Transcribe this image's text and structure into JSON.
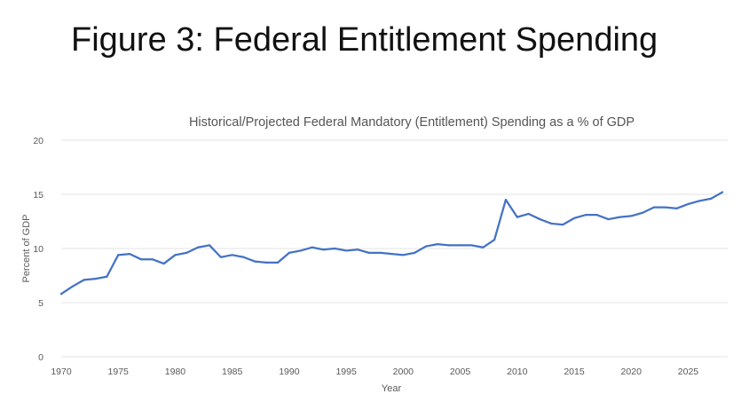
{
  "slide": {
    "title": "Figure 3: Federal Entitlement Spending"
  },
  "chart_data": {
    "type": "line",
    "title": "Historical/Projected Federal Mandatory (Entitlement) Spending as a % of GDP",
    "xlabel": "Year",
    "ylabel": "Percent of GDP",
    "xlim": [
      1970,
      2028
    ],
    "ylim": [
      0,
      20
    ],
    "x_ticks": [
      "1970",
      "1975",
      "1980",
      "1985",
      "1990",
      "1995",
      "2000",
      "2005",
      "2010",
      "2015",
      "2020",
      "2025"
    ],
    "y_ticks": [
      "0",
      "5",
      "10",
      "15",
      "20"
    ],
    "grid": "horizontal",
    "legend": "none",
    "series": [
      {
        "color": "#4472c4",
        "x": [
          1970,
          1971,
          1972,
          1973,
          1974,
          1975,
          1976,
          1977,
          1978,
          1979,
          1980,
          1981,
          1982,
          1983,
          1984,
          1985,
          1986,
          1987,
          1988,
          1989,
          1990,
          1991,
          1992,
          1993,
          1994,
          1995,
          1996,
          1997,
          1998,
          1999,
          2000,
          2001,
          2002,
          2003,
          2004,
          2005,
          2006,
          2007,
          2008,
          2009,
          2010,
          2011,
          2012,
          2013,
          2014,
          2015,
          2016,
          2017,
          2018,
          2019,
          2020,
          2021,
          2022,
          2023,
          2024,
          2025,
          2026,
          2027,
          2028
        ],
        "values": [
          5.8,
          6.5,
          7.1,
          7.2,
          7.4,
          9.4,
          9.5,
          9.0,
          9.0,
          8.6,
          9.4,
          9.6,
          10.1,
          10.3,
          9.2,
          9.4,
          9.2,
          8.8,
          8.7,
          8.7,
          9.6,
          9.8,
          10.1,
          9.9,
          10.0,
          9.8,
          9.9,
          9.6,
          9.6,
          9.5,
          9.4,
          9.6,
          10.2,
          10.4,
          10.3,
          10.3,
          10.3,
          10.1,
          10.8,
          14.5,
          12.9,
          13.2,
          12.7,
          12.3,
          12.2,
          12.8,
          13.1,
          13.1,
          12.7,
          12.9,
          13.0,
          13.3,
          13.8,
          13.8,
          13.7,
          14.1,
          14.4,
          14.6,
          15.2
        ]
      }
    ]
  }
}
